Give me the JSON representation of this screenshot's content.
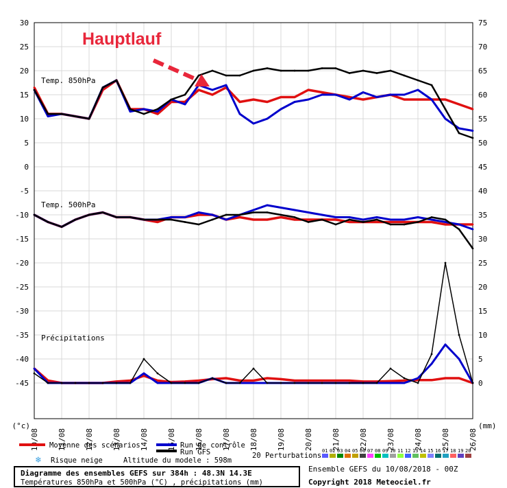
{
  "annotation": {
    "label": "Hauptlauf",
    "arrow_color": "#e8263a"
  },
  "axes": {
    "left_unit": "(°c)",
    "right_unit": "(mm)",
    "left_ticks": [
      30,
      25,
      20,
      15,
      10,
      5,
      0,
      -5,
      -10,
      -15,
      -20,
      -25,
      -30,
      -35,
      -40,
      -45
    ],
    "right_ticks": [
      75,
      70,
      65,
      60,
      55,
      50,
      45,
      40,
      35,
      30,
      25,
      20,
      15,
      10,
      5,
      0
    ],
    "x_ticks": [
      "10/08",
      "11/08",
      "12/08",
      "13/08",
      "14/08",
      "15/08",
      "16/08",
      "17/08",
      "18/08",
      "19/08",
      "20/08",
      "21/08",
      "22/08",
      "23/08",
      "24/08",
      "25/08",
      "26/08"
    ]
  },
  "panels": {
    "t850_label": "Temp. 850hPa",
    "t500_label": "Temp. 500hPa",
    "precip_label": "Précipitations"
  },
  "legend": {
    "mean": "Moyenne des scénarios",
    "control": "Run de contrôle",
    "gfs": "Run GFS",
    "snow": "Risque neige",
    "altitude": "Altitude du modele : 598m",
    "perturbations": "20 Perturbations",
    "perturbation_numbers": [
      "01",
      "02",
      "03",
      "04",
      "05",
      "06",
      "07",
      "08",
      "09",
      "10",
      "11",
      "12",
      "13",
      "14",
      "15",
      "16",
      "17",
      "18",
      "19",
      "20"
    ],
    "colors": {
      "mean": "#e01010",
      "control": "#0000cc",
      "gfs": "#000000",
      "perturbations": [
        "#5a5aff",
        "#b0b000",
        "#008800",
        "#e07000",
        "#c0a000",
        "#404040",
        "#ff40ff",
        "#00c000",
        "#00c0c0",
        "#a0a0a0",
        "#90ff40",
        "#4060ff",
        "#60c060",
        "#c0c000",
        "#8080ff",
        "#007070",
        "#20a0c0",
        "#ff6060",
        "#6040c0",
        "#a04040"
      ]
    }
  },
  "footer": {
    "title": "Diagramme des ensembles GEFS sur 384h : 48.3N 14.3E",
    "subtitle": "Températures 850hPa et 500hPa (°C) , précipitations (mm)",
    "run": "Ensemble GEFS du 10/08/2018 - 00Z",
    "copyright": "Copyright 2018 Meteociel.fr"
  },
  "chart_data": {
    "type": "line",
    "title": "Diagramme des ensembles GEFS sur 384h : 48.3N 14.3E",
    "x": [
      "10/08 00Z",
      "10/08 12Z",
      "11/08 00Z",
      "11/08 12Z",
      "12/08 00Z",
      "12/08 12Z",
      "13/08 00Z",
      "13/08 12Z",
      "14/08 00Z",
      "14/08 12Z",
      "15/08 00Z",
      "15/08 12Z",
      "16/08 00Z",
      "16/08 12Z",
      "17/08 00Z",
      "17/08 12Z",
      "18/08 00Z",
      "18/08 12Z",
      "19/08 00Z",
      "19/08 12Z",
      "20/08 00Z",
      "20/08 12Z",
      "21/08 00Z",
      "21/08 12Z",
      "22/08 00Z",
      "22/08 12Z",
      "23/08 00Z",
      "23/08 12Z",
      "24/08 00Z",
      "24/08 12Z",
      "25/08 00Z",
      "25/08 12Z",
      "26/08 00Z"
    ],
    "series": [
      {
        "name": "Moyenne des scénarios",
        "panel": "Temp. 850hPa",
        "values": [
          16.5,
          11,
          11,
          10.5,
          10,
          16,
          18,
          12,
          12,
          11,
          13.5,
          13.5,
          16,
          15,
          16.5,
          13.5,
          14,
          13.5,
          14.5,
          14.5,
          16,
          15.5,
          15,
          14.5,
          14,
          14.5,
          15,
          14,
          14,
          14,
          14,
          13,
          12
        ]
      },
      {
        "name": "Run de contrôle",
        "panel": "Temp. 850hPa",
        "values": [
          16,
          10.5,
          11,
          10.5,
          10,
          16.5,
          18,
          11.5,
          12,
          11.5,
          14,
          13,
          17,
          16,
          17,
          11,
          9,
          10,
          12,
          13.5,
          14,
          15,
          15,
          14,
          15.5,
          14.5,
          15,
          15,
          16,
          14,
          10,
          8,
          7.5
        ]
      },
      {
        "name": "Run GFS",
        "panel": "Temp. 850hPa",
        "values": [
          16,
          11,
          11,
          10.5,
          10,
          16.5,
          18,
          12,
          11,
          12,
          14,
          15,
          19,
          20,
          19,
          19,
          20,
          20.5,
          20,
          20,
          20,
          20.5,
          20.5,
          19.5,
          20,
          19.5,
          20,
          19,
          18,
          17,
          12,
          7,
          6
        ]
      },
      {
        "name": "Moyenne des scénarios",
        "panel": "Temp. 500hPa",
        "values": [
          -10,
          -11.5,
          -12.5,
          -11,
          -10,
          -9.5,
          -10.5,
          -10.5,
          -11,
          -11.5,
          -10.5,
          -10.5,
          -10,
          -10,
          -11,
          -10.5,
          -11,
          -11,
          -10.5,
          -11,
          -11,
          -11,
          -11,
          -11.5,
          -11.5,
          -11.5,
          -11.5,
          -11.5,
          -11.5,
          -11.5,
          -12,
          -12,
          -12
        ]
      },
      {
        "name": "Run de contrôle",
        "panel": "Temp. 500hPa",
        "values": [
          -10,
          -11.5,
          -12.5,
          -11,
          -10,
          -9.5,
          -10.5,
          -10.5,
          -11,
          -11,
          -10.5,
          -10.5,
          -9.5,
          -10,
          -11,
          -10,
          -9,
          -8,
          -8.5,
          -9,
          -9.5,
          -10,
          -10.5,
          -10.5,
          -11,
          -10.5,
          -11,
          -11,
          -10.5,
          -11,
          -11.5,
          -12,
          -13
        ]
      },
      {
        "name": "Run GFS",
        "panel": "Temp. 500hPa",
        "values": [
          -10,
          -11.5,
          -12.5,
          -11,
          -10,
          -9.5,
          -10.5,
          -10.5,
          -11,
          -11,
          -11,
          -11.5,
          -12,
          -11,
          -10,
          -10,
          -9.5,
          -9.5,
          -10,
          -10.5,
          -11.5,
          -11,
          -12,
          -11,
          -11.5,
          -11,
          -12,
          -12,
          -11.5,
          -10.5,
          -11,
          -13,
          -17
        ]
      },
      {
        "name": "Moyenne des scénarios",
        "panel": "Précipitations",
        "values": [
          3,
          0.5,
          0,
          0,
          0,
          0,
          0.3,
          0.5,
          1.5,
          0.5,
          0.2,
          0.3,
          0.5,
          0.8,
          1,
          0.5,
          0.5,
          1,
          0.8,
          0.5,
          0.5,
          0.5,
          0.5,
          0.5,
          0.3,
          0.3,
          0.4,
          0.5,
          0.6,
          0.6,
          1,
          1,
          0
        ]
      },
      {
        "name": "Run de contrôle",
        "panel": "Précipitations",
        "values": [
          3,
          0,
          0,
          0,
          0,
          0,
          0,
          0,
          2,
          0,
          0,
          0,
          0,
          1,
          0,
          0,
          0,
          0,
          0,
          0,
          0,
          0,
          0,
          0,
          0,
          0,
          0,
          0,
          1,
          4,
          8,
          5,
          0
        ]
      },
      {
        "name": "Run GFS",
        "panel": "Précipitations",
        "values": [
          2,
          0,
          0,
          0,
          0,
          0,
          0,
          0,
          5,
          2,
          0,
          0,
          0,
          1,
          0,
          0,
          3,
          0,
          0,
          0,
          0,
          0,
          0,
          0,
          0,
          0,
          3,
          1,
          0,
          6,
          25,
          10,
          0
        ]
      }
    ],
    "xlabel": "",
    "ylabel": "(°c)",
    "y2label": "(mm)",
    "ylim": [
      -45,
      30
    ],
    "y2lim": [
      0,
      75
    ],
    "grid": true,
    "legend": "bottom"
  }
}
